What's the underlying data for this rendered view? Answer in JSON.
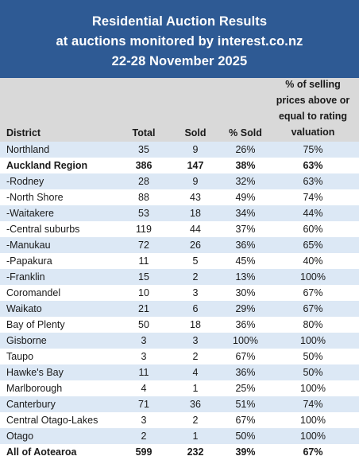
{
  "title": {
    "line1": "Residential Auction Results",
    "line2": "at auctions monitored by interest.co.nz",
    "line3": "22-28 November 2025"
  },
  "headers": {
    "district": "District",
    "total": "Total",
    "sold": "Sold",
    "pct_sold": "% Sold",
    "valuation_line1": "% of selling",
    "valuation_line2": "prices above or",
    "valuation_line3": "equal to rating",
    "valuation_line4": "valuation"
  },
  "colors": {
    "title_background": "#2e5a94",
    "header_background": "#d9d9d9",
    "alt_row_background": "#dce8f5"
  },
  "rows": [
    {
      "district": "Northland",
      "total": "35",
      "sold": "9",
      "pct_sold": "26%",
      "valuation": "75%"
    },
    {
      "district": "Auckland Region",
      "total": "386",
      "sold": "147",
      "pct_sold": "38%",
      "valuation": "63%"
    },
    {
      "district": "-Rodney",
      "total": "28",
      "sold": "9",
      "pct_sold": "32%",
      "valuation": "63%"
    },
    {
      "district": "-North Shore",
      "total": "88",
      "sold": "43",
      "pct_sold": "49%",
      "valuation": "74%"
    },
    {
      "district": "-Waitakere",
      "total": "53",
      "sold": "18",
      "pct_sold": "34%",
      "valuation": "44%"
    },
    {
      "district": "-Central suburbs",
      "total": "119",
      "sold": "44",
      "pct_sold": "37%",
      "valuation": "60%"
    },
    {
      "district": "-Manukau",
      "total": "72",
      "sold": "26",
      "pct_sold": "36%",
      "valuation": "65%"
    },
    {
      "district": "-Papakura",
      "total": "11",
      "sold": "5",
      "pct_sold": "45%",
      "valuation": "40%"
    },
    {
      "district": "-Franklin",
      "total": "15",
      "sold": "2",
      "pct_sold": "13%",
      "valuation": "100%"
    },
    {
      "district": "Coromandel",
      "total": "10",
      "sold": "3",
      "pct_sold": "30%",
      "valuation": "67%"
    },
    {
      "district": "Waikato",
      "total": "21",
      "sold": "6",
      "pct_sold": "29%",
      "valuation": "67%"
    },
    {
      "district": "Bay of Plenty",
      "total": "50",
      "sold": "18",
      "pct_sold": "36%",
      "valuation": "80%"
    },
    {
      "district": "Gisborne",
      "total": "3",
      "sold": "3",
      "pct_sold": "100%",
      "valuation": "100%"
    },
    {
      "district": "Taupo",
      "total": "3",
      "sold": "2",
      "pct_sold": "67%",
      "valuation": "50%"
    },
    {
      "district": "Hawke's Bay",
      "total": "11",
      "sold": "4",
      "pct_sold": "36%",
      "valuation": "50%"
    },
    {
      "district": "Marlborough",
      "total": "4",
      "sold": "1",
      "pct_sold": "25%",
      "valuation": "100%"
    },
    {
      "district": "Canterbury",
      "total": "71",
      "sold": "36",
      "pct_sold": "51%",
      "valuation": "74%"
    },
    {
      "district": "Central Otago-Lakes",
      "total": "3",
      "sold": "2",
      "pct_sold": "67%",
      "valuation": "100%"
    },
    {
      "district": "Otago",
      "total": "2",
      "sold": "1",
      "pct_sold": "50%",
      "valuation": "100%"
    },
    {
      "district": "All of Aotearoa",
      "total": "599",
      "sold": "232",
      "pct_sold": "39%",
      "valuation": "67%"
    }
  ]
}
